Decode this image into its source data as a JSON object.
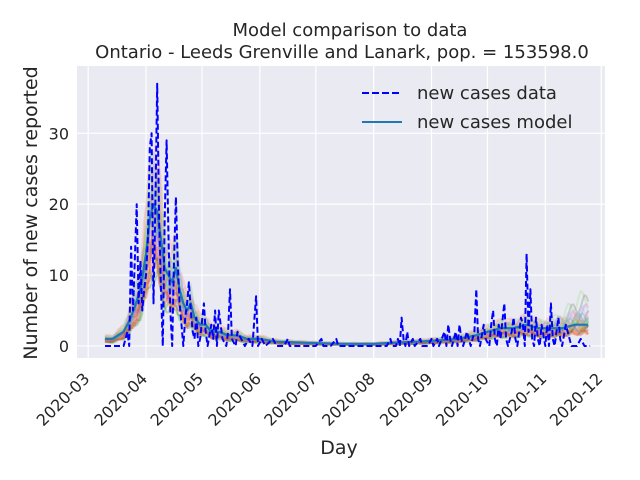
{
  "chart_data": {
    "type": "line",
    "title": "Model comparison to data",
    "subtitle": "Ontario - Leeds Grenville and Lanark, pop. = 153598.0",
    "xlabel": "Day",
    "ylabel": "Number of new cases reported",
    "x_ticks": [
      "2020-03",
      "2020-04",
      "2020-05",
      "2020-06",
      "2020-07",
      "2020-08",
      "2020-09",
      "2020-10",
      "2020-11",
      "2020-12"
    ],
    "y_ticks": [
      0,
      10,
      20,
      30
    ],
    "xlim": [
      "2020-02-24",
      "2020-12-03"
    ],
    "ylim": [
      -1.7,
      39.5
    ],
    "grid": true,
    "legend": "top-right",
    "colors": {
      "data": "#0000ff",
      "model": "#1f77b4",
      "background": "#eaeaf2"
    },
    "series": [
      {
        "name": "new cases data",
        "style": "dashed",
        "points": [
          [
            "2020-03-10",
            0
          ],
          [
            "2020-03-16",
            0
          ],
          [
            "2020-03-20",
            0
          ],
          [
            "2020-03-22",
            2
          ],
          [
            "2020-03-23",
            0
          ],
          [
            "2020-03-24",
            14
          ],
          [
            "2020-03-25",
            5
          ],
          [
            "2020-03-26",
            12
          ],
          [
            "2020-03-27",
            20
          ],
          [
            "2020-03-28",
            6
          ],
          [
            "2020-03-29",
            12
          ],
          [
            "2020-03-30",
            5
          ],
          [
            "2020-03-31",
            8
          ],
          [
            "2020-04-01",
            10
          ],
          [
            "2020-04-02",
            15
          ],
          [
            "2020-04-03",
            28
          ],
          [
            "2020-04-04",
            30
          ],
          [
            "2020-04-05",
            6
          ],
          [
            "2020-04-06",
            20
          ],
          [
            "2020-04-07",
            37
          ],
          [
            "2020-04-08",
            18
          ],
          [
            "2020-04-09",
            8
          ],
          [
            "2020-04-10",
            0
          ],
          [
            "2020-04-11",
            18
          ],
          [
            "2020-04-12",
            29
          ],
          [
            "2020-04-13",
            16
          ],
          [
            "2020-04-14",
            5
          ],
          [
            "2020-04-15",
            0
          ],
          [
            "2020-04-16",
            12
          ],
          [
            "2020-04-17",
            21
          ],
          [
            "2020-04-18",
            12
          ],
          [
            "2020-04-19",
            6
          ],
          [
            "2020-04-20",
            3
          ],
          [
            "2020-04-21",
            0
          ],
          [
            "2020-04-22",
            4
          ],
          [
            "2020-04-23",
            6
          ],
          [
            "2020-04-24",
            9
          ],
          [
            "2020-04-25",
            5
          ],
          [
            "2020-04-26",
            2
          ],
          [
            "2020-04-27",
            1
          ],
          [
            "2020-04-28",
            4
          ],
          [
            "2020-04-29",
            0
          ],
          [
            "2020-04-30",
            1
          ],
          [
            "2020-05-02",
            6
          ],
          [
            "2020-05-03",
            2
          ],
          [
            "2020-05-04",
            0
          ],
          [
            "2020-05-06",
            3
          ],
          [
            "2020-05-07",
            1
          ],
          [
            "2020-05-08",
            5
          ],
          [
            "2020-05-09",
            0
          ],
          [
            "2020-05-10",
            5
          ],
          [
            "2020-05-12",
            1
          ],
          [
            "2020-05-14",
            0
          ],
          [
            "2020-05-15",
            2
          ],
          [
            "2020-05-16",
            8
          ],
          [
            "2020-05-17",
            1
          ],
          [
            "2020-05-19",
            0
          ],
          [
            "2020-05-20",
            2
          ],
          [
            "2020-05-22",
            1
          ],
          [
            "2020-05-24",
            0
          ],
          [
            "2020-05-26",
            1
          ],
          [
            "2020-05-28",
            0
          ],
          [
            "2020-05-30",
            7
          ],
          [
            "2020-05-31",
            0
          ],
          [
            "2020-06-02",
            1
          ],
          [
            "2020-06-04",
            0
          ],
          [
            "2020-06-08",
            1
          ],
          [
            "2020-06-10",
            0
          ],
          [
            "2020-06-14",
            0
          ],
          [
            "2020-06-16",
            1
          ],
          [
            "2020-06-17",
            0
          ],
          [
            "2020-06-22",
            0
          ],
          [
            "2020-06-25",
            0
          ],
          [
            "2020-06-27",
            0
          ],
          [
            "2020-06-29",
            0
          ],
          [
            "2020-07-01",
            0
          ],
          [
            "2020-07-04",
            1
          ],
          [
            "2020-07-05",
            0
          ],
          [
            "2020-07-09",
            0
          ],
          [
            "2020-07-12",
            1
          ],
          [
            "2020-07-13",
            0
          ],
          [
            "2020-07-20",
            0
          ],
          [
            "2020-07-25",
            0
          ],
          [
            "2020-08-01",
            0
          ],
          [
            "2020-08-08",
            0
          ],
          [
            "2020-08-10",
            1
          ],
          [
            "2020-08-11",
            0
          ],
          [
            "2020-08-13",
            0
          ],
          [
            "2020-08-14",
            1
          ],
          [
            "2020-08-15",
            0
          ],
          [
            "2020-08-16",
            4
          ],
          [
            "2020-08-17",
            1
          ],
          [
            "2020-08-18",
            0
          ],
          [
            "2020-08-19",
            2
          ],
          [
            "2020-08-20",
            0
          ],
          [
            "2020-08-22",
            1
          ],
          [
            "2020-08-23",
            0
          ],
          [
            "2020-08-26",
            1
          ],
          [
            "2020-08-27",
            0
          ],
          [
            "2020-08-30",
            0
          ],
          [
            "2020-09-01",
            1
          ],
          [
            "2020-09-02",
            0
          ],
          [
            "2020-09-04",
            1
          ],
          [
            "2020-09-05",
            0
          ],
          [
            "2020-09-08",
            2
          ],
          [
            "2020-09-09",
            0
          ],
          [
            "2020-09-10",
            3
          ],
          [
            "2020-09-11",
            1
          ],
          [
            "2020-09-12",
            0
          ],
          [
            "2020-09-14",
            2
          ],
          [
            "2020-09-15",
            0
          ],
          [
            "2020-09-16",
            3
          ],
          [
            "2020-09-17",
            1
          ],
          [
            "2020-09-18",
            0
          ],
          [
            "2020-09-20",
            2
          ],
          [
            "2020-09-22",
            0
          ],
          [
            "2020-09-24",
            2
          ],
          [
            "2020-09-25",
            8
          ],
          [
            "2020-09-26",
            1
          ],
          [
            "2020-09-27",
            0
          ],
          [
            "2020-09-29",
            3
          ],
          [
            "2020-09-30",
            1
          ],
          [
            "2020-10-02",
            0
          ],
          [
            "2020-10-03",
            3
          ],
          [
            "2020-10-04",
            5
          ],
          [
            "2020-10-05",
            1
          ],
          [
            "2020-10-06",
            0
          ],
          [
            "2020-10-07",
            3
          ],
          [
            "2020-10-08",
            1
          ],
          [
            "2020-10-10",
            6
          ],
          [
            "2020-10-11",
            1
          ],
          [
            "2020-10-12",
            0
          ],
          [
            "2020-10-14",
            2
          ],
          [
            "2020-10-15",
            4
          ],
          [
            "2020-10-16",
            1
          ],
          [
            "2020-10-17",
            0
          ],
          [
            "2020-10-18",
            2
          ],
          [
            "2020-10-19",
            4
          ],
          [
            "2020-10-20",
            3
          ],
          [
            "2020-10-21",
            0
          ],
          [
            "2020-10-22",
            13
          ],
          [
            "2020-10-23",
            2
          ],
          [
            "2020-10-24",
            8
          ],
          [
            "2020-10-25",
            1
          ],
          [
            "2020-10-26",
            0
          ],
          [
            "2020-10-27",
            4
          ],
          [
            "2020-10-28",
            1
          ],
          [
            "2020-10-29",
            0
          ],
          [
            "2020-10-30",
            3
          ],
          [
            "2020-11-01",
            0
          ],
          [
            "2020-11-02",
            3
          ],
          [
            "2020-11-03",
            0
          ],
          [
            "2020-11-04",
            6
          ],
          [
            "2020-11-05",
            1
          ],
          [
            "2020-11-06",
            0
          ],
          [
            "2020-11-08",
            4
          ],
          [
            "2020-11-09",
            1
          ],
          [
            "2020-11-10",
            0
          ],
          [
            "2020-11-12",
            3
          ],
          [
            "2020-11-13",
            2
          ],
          [
            "2020-11-15",
            0
          ],
          [
            "2020-11-18",
            0
          ],
          [
            "2020-11-20",
            1
          ],
          [
            "2020-11-22",
            0
          ],
          [
            "2020-11-25",
            0
          ]
        ]
      },
      {
        "name": "new cases model",
        "style": "solid",
        "points": [
          [
            "2020-03-10",
            1
          ],
          [
            "2020-03-14",
            1
          ],
          [
            "2020-03-17",
            1.5
          ],
          [
            "2020-03-20",
            2
          ],
          [
            "2020-03-23",
            3.5
          ],
          [
            "2020-03-26",
            5.5
          ],
          [
            "2020-03-29",
            8
          ],
          [
            "2020-04-01",
            13
          ],
          [
            "2020-04-03",
            18
          ],
          [
            "2020-04-05",
            20
          ],
          [
            "2020-04-07",
            19
          ],
          [
            "2020-04-09",
            15
          ],
          [
            "2020-04-11",
            11
          ],
          [
            "2020-04-13",
            10
          ],
          [
            "2020-04-15",
            9
          ],
          [
            "2020-04-17",
            11
          ],
          [
            "2020-04-19",
            8
          ],
          [
            "2020-04-21",
            6
          ],
          [
            "2020-04-23",
            5
          ],
          [
            "2020-04-25",
            6
          ],
          [
            "2020-04-27",
            4
          ],
          [
            "2020-04-30",
            3
          ],
          [
            "2020-05-03",
            3
          ],
          [
            "2020-05-06",
            2
          ],
          [
            "2020-05-10",
            2
          ],
          [
            "2020-05-15",
            1.5
          ],
          [
            "2020-05-20",
            1.5
          ],
          [
            "2020-05-25",
            1
          ],
          [
            "2020-06-01",
            1
          ],
          [
            "2020-06-10",
            0.6
          ],
          [
            "2020-06-20",
            0.5
          ],
          [
            "2020-07-01",
            0.4
          ],
          [
            "2020-07-15",
            0.3
          ],
          [
            "2020-08-01",
            0.3
          ],
          [
            "2020-08-15",
            0.5
          ],
          [
            "2020-08-25",
            0.6
          ],
          [
            "2020-09-05",
            0.8
          ],
          [
            "2020-09-15",
            1
          ],
          [
            "2020-09-25",
            1.5
          ],
          [
            "2020-10-01",
            2
          ],
          [
            "2020-10-08",
            2.5
          ],
          [
            "2020-10-15",
            2.5
          ],
          [
            "2020-10-22",
            3
          ],
          [
            "2020-10-28",
            2.5
          ],
          [
            "2020-11-03",
            2.5
          ],
          [
            "2020-11-10",
            2.5
          ],
          [
            "2020-11-17",
            3
          ],
          [
            "2020-11-24",
            3
          ]
        ]
      }
    ]
  }
}
